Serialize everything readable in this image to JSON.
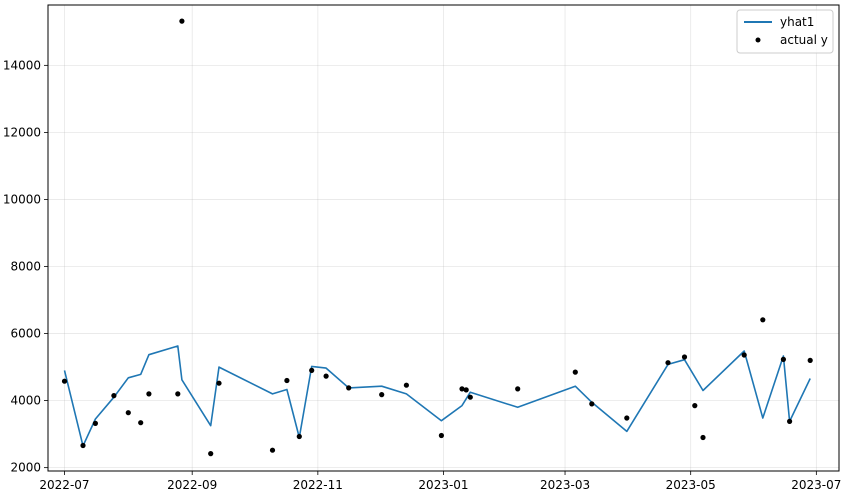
{
  "chart_data": {
    "type": "line",
    "title": "",
    "xlabel": "",
    "ylabel": "",
    "grid": true,
    "legend_position": "top-right",
    "x_ticks": [
      "2022-07",
      "2022-09",
      "2022-11",
      "2023-01",
      "2023-03",
      "2023-05",
      "2023-07"
    ],
    "y_ticks": [
      2000,
      4000,
      6000,
      8000,
      10000,
      12000,
      14000
    ],
    "xlim": [
      "2022-06-23",
      "2023-07-12"
    ],
    "ylim": [
      1900,
      15800
    ],
    "colors": {
      "yhat1": "#1f77b4",
      "actual": "#000000"
    },
    "series": [
      {
        "name": "yhat1",
        "kind": "line",
        "points": [
          [
            "2022-07-01",
            4900
          ],
          [
            "2022-07-10",
            2650
          ],
          [
            "2022-07-16",
            3450
          ],
          [
            "2022-07-25",
            4100
          ],
          [
            "2022-08-01",
            4680
          ],
          [
            "2022-08-07",
            4780
          ],
          [
            "2022-08-11",
            5370
          ],
          [
            "2022-08-25",
            5630
          ],
          [
            "2022-08-27",
            4620
          ],
          [
            "2022-09-10",
            3250
          ],
          [
            "2022-09-14",
            5000
          ],
          [
            "2022-10-10",
            4200
          ],
          [
            "2022-10-17",
            4330
          ],
          [
            "2022-10-23",
            2900
          ],
          [
            "2022-10-29",
            5020
          ],
          [
            "2022-11-05",
            4970
          ],
          [
            "2022-11-16",
            4380
          ],
          [
            "2022-12-02",
            4430
          ],
          [
            "2022-12-14",
            4200
          ],
          [
            "2022-12-31",
            3400
          ],
          [
            "2023-01-10",
            3850
          ],
          [
            "2023-01-14",
            4250
          ],
          [
            "2023-02-06",
            3800
          ],
          [
            "2023-03-06",
            4430
          ],
          [
            "2023-03-14",
            3950
          ],
          [
            "2023-03-31",
            3080
          ],
          [
            "2023-04-20",
            5080
          ],
          [
            "2023-04-28",
            5220
          ],
          [
            "2023-05-07",
            4300
          ],
          [
            "2023-05-27",
            5480
          ],
          [
            "2023-06-05",
            3480
          ],
          [
            "2023-06-15",
            5330
          ],
          [
            "2023-06-18",
            3380
          ],
          [
            "2023-06-28",
            4660
          ]
        ]
      },
      {
        "name": "actual y",
        "kind": "scatter",
        "points": [
          [
            "2022-07-01",
            4580
          ],
          [
            "2022-07-10",
            2660
          ],
          [
            "2022-07-16",
            3320
          ],
          [
            "2022-07-25",
            4150
          ],
          [
            "2022-08-01",
            3640
          ],
          [
            "2022-08-07",
            3340
          ],
          [
            "2022-08-11",
            4200
          ],
          [
            "2022-08-25",
            4200
          ],
          [
            "2022-08-27",
            15320
          ],
          [
            "2022-09-10",
            2420
          ],
          [
            "2022-09-14",
            4520
          ],
          [
            "2022-10-10",
            2520
          ],
          [
            "2022-10-17",
            4600
          ],
          [
            "2022-10-23",
            2930
          ],
          [
            "2022-10-29",
            4900
          ],
          [
            "2022-11-05",
            4730
          ],
          [
            "2022-11-16",
            4380
          ],
          [
            "2022-12-02",
            4180
          ],
          [
            "2022-12-14",
            4460
          ],
          [
            "2022-12-31",
            2960
          ],
          [
            "2023-01-10",
            4350
          ],
          [
            "2023-01-12",
            4320
          ],
          [
            "2023-01-14",
            4100
          ],
          [
            "2023-02-06",
            4350
          ],
          [
            "2023-03-06",
            4850
          ],
          [
            "2023-03-14",
            3900
          ],
          [
            "2023-03-31",
            3480
          ],
          [
            "2023-04-20",
            5130
          ],
          [
            "2023-04-28",
            5300
          ],
          [
            "2023-05-03",
            3850
          ],
          [
            "2023-05-07",
            2900
          ],
          [
            "2023-05-27",
            5360
          ],
          [
            "2023-06-05",
            6410
          ],
          [
            "2023-06-15",
            5230
          ],
          [
            "2023-06-18",
            3380
          ],
          [
            "2023-06-28",
            5200
          ]
        ]
      }
    ]
  }
}
